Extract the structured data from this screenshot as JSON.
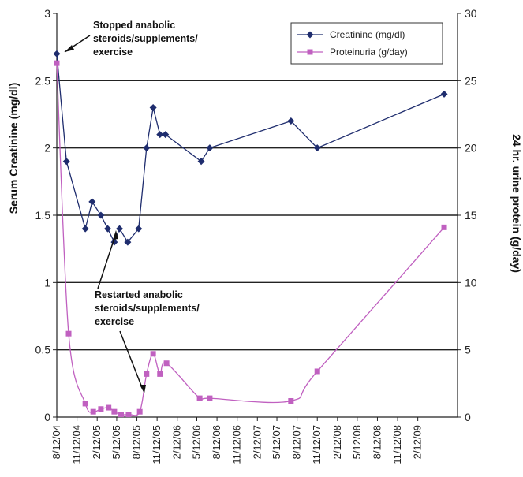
{
  "chart_data": {
    "type": "line",
    "title": "",
    "xlabel": "",
    "ylabel_left": "Serum Creatinine (mg/dl)",
    "ylabel_right": "24 hr. urine protein (g/day)",
    "ylim_left": [
      0,
      3
    ],
    "ylim_right": [
      0,
      30
    ],
    "yticks_left": [
      "0",
      "0.5",
      "1",
      "1.5",
      "2",
      "2.5",
      "3"
    ],
    "yticks_right": [
      "0",
      "5",
      "10",
      "15",
      "20",
      "25",
      "30"
    ],
    "x_tick_labels": [
      "8/12/04",
      "11/12/04",
      "2/12/05",
      "5/12/05",
      "8/12/05",
      "11/12/05",
      "2/12/06",
      "5/12/06",
      "8/12/06",
      "11/12/06",
      "2/12/07",
      "5/12/07",
      "8/12/07",
      "11/12/07",
      "2/12/08",
      "5/12/08",
      "8/12/08",
      "11/12/08",
      "2/12/09"
    ],
    "gridlines": "horizontal",
    "legend_position": "top-right",
    "series": [
      {
        "name": "Creatinine (mg/dl)",
        "axis": "left",
        "color": "#1f2d6e",
        "marker": "diamond",
        "points": [
          [
            "8/12/04",
            2.7
          ],
          [
            "9/25/04",
            1.9
          ],
          [
            "12/20/04",
            1.4
          ],
          [
            "1/20/05",
            1.6
          ],
          [
            "3/1/05",
            1.5
          ],
          [
            "4/1/05",
            1.4
          ],
          [
            "5/1/05",
            1.3
          ],
          [
            "5/25/05",
            1.4
          ],
          [
            "7/1/05",
            1.3
          ],
          [
            "8/20/05",
            1.4
          ],
          [
            "9/25/05",
            2.0
          ],
          [
            "10/25/05",
            2.3
          ],
          [
            "11/25/05",
            2.1
          ],
          [
            "12/20/05",
            2.1
          ],
          [
            "6/1/06",
            1.9
          ],
          [
            "7/10/06",
            2.0
          ],
          [
            "7/15/07",
            2.2
          ],
          [
            "11/12/07",
            2.0
          ],
          [
            "6/12/09",
            2.4
          ]
        ]
      },
      {
        "name": "Proteinuria (g/day)",
        "axis": "right",
        "color": "#c060c0",
        "marker": "square",
        "points": [
          [
            "8/12/04",
            26.3
          ],
          [
            "10/5/04",
            6.2
          ],
          [
            "12/20/04",
            1.0
          ],
          [
            "1/25/05",
            0.4
          ],
          [
            "3/1/05",
            0.6
          ],
          [
            "4/5/05",
            0.7
          ],
          [
            "5/1/05",
            0.4
          ],
          [
            "6/1/05",
            0.2
          ],
          [
            "7/5/05",
            0.2
          ],
          [
            "8/25/05",
            0.4
          ],
          [
            "9/25/05",
            3.2
          ],
          [
            "10/25/05",
            4.7
          ],
          [
            "11/25/05",
            3.2
          ],
          [
            "12/25/05",
            4.0
          ],
          [
            "5/25/06",
            1.4
          ],
          [
            "7/10/06",
            1.4
          ],
          [
            "7/15/07",
            1.2
          ],
          [
            "11/12/07",
            3.4
          ],
          [
            "6/12/09",
            14.1
          ]
        ]
      }
    ],
    "annotations": [
      {
        "lines": [
          "Stopped anabolic",
          "steroids/supplements/",
          "exercise"
        ]
      },
      {
        "lines": [
          "Restarted anabolic",
          "steroids/supplements/",
          "exercise"
        ]
      }
    ]
  }
}
